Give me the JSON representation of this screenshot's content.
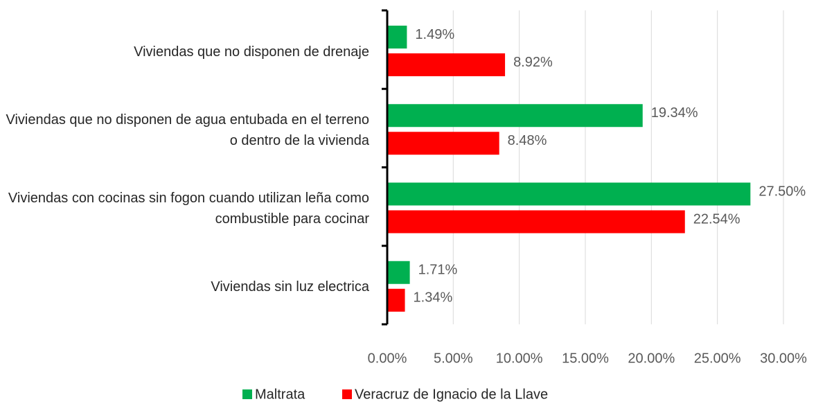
{
  "chart_data": {
    "type": "barh",
    "categories": [
      "Viviendas que no disponen de drenaje",
      "Viviendas que no disponen de agua entubada en el terreno o dentro de la vivienda",
      "Viviendas con cocinas sin fogon cuando utilizan leña como combustible para cocinar",
      "Viviendas sin luz electrica"
    ],
    "series": [
      {
        "name": "Maltrata",
        "color": "#00b050",
        "values": [
          1.49,
          19.34,
          27.5,
          1.71
        ],
        "value_labels": [
          "1.49%",
          "19.34%",
          "27.50%",
          "1.71%"
        ]
      },
      {
        "name": "Veracruz de Ignacio de la Llave",
        "color": "#ff0000",
        "values": [
          8.92,
          8.48,
          22.54,
          1.34
        ],
        "value_labels": [
          "8.92%",
          "8.48%",
          "22.54%",
          "1.34%"
        ]
      }
    ],
    "xlim": [
      0,
      30
    ],
    "xticks": [
      {
        "value": 0,
        "label": "0.00%"
      },
      {
        "value": 5,
        "label": "5.00%"
      },
      {
        "value": 10,
        "label": "10.00%"
      },
      {
        "value": 15,
        "label": "15.00%"
      },
      {
        "value": 20,
        "label": "20.00%"
      },
      {
        "value": 25,
        "label": "25.00%"
      },
      {
        "value": 30,
        "label": "30.00%"
      }
    ],
    "grid": true,
    "legend": "bottom"
  }
}
